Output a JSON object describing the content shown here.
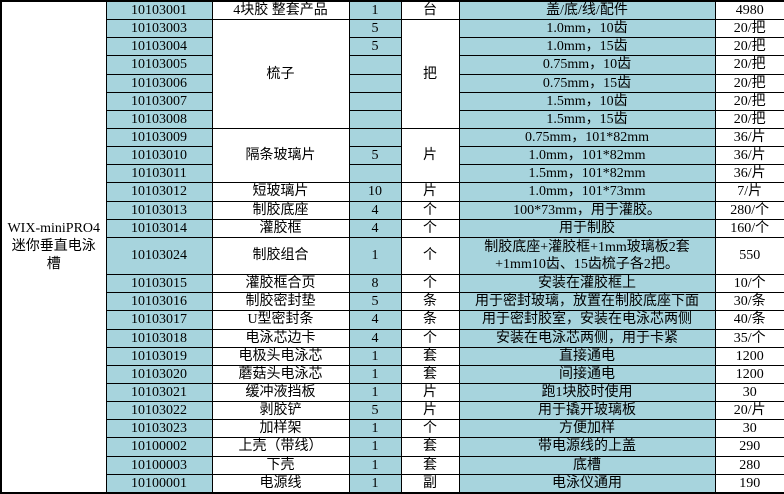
{
  "colors": {
    "cell_cyan": "#A7D4DD",
    "cell_white": "#FFFFFF",
    "border_black": "#000000"
  },
  "table": {
    "product_label_lines": [
      "WIX-miniPRO4",
      "迷你垂直电泳",
      "槽"
    ],
    "rows": [
      {
        "code": "10103001",
        "name": "4块胶 整套产品",
        "name_rowspan": 1,
        "qty": "1",
        "unit": "台",
        "unit_rowspan": 1,
        "desc": "盖/底/线/配件",
        "price": "4980"
      },
      {
        "code": "10103003",
        "name": "梳子",
        "name_rowspan": 6,
        "qty": "5",
        "unit": "把",
        "unit_rowspan": 6,
        "desc": "1.0mm，10齿",
        "price": "20/把"
      },
      {
        "code": "10103004",
        "qty": "5",
        "desc": "1.0mm，15齿",
        "price": "20/把"
      },
      {
        "code": "10103005",
        "qty": "",
        "desc": "0.75mm，10齿",
        "price": "20/把"
      },
      {
        "code": "10103006",
        "qty": "",
        "desc": "0.75mm，15齿",
        "price": "20/把"
      },
      {
        "code": "10103007",
        "qty": "",
        "desc": "1.5mm，10齿",
        "price": "20/把"
      },
      {
        "code": "10103008",
        "qty": "",
        "desc": "1.5mm，15齿",
        "price": "20/把"
      },
      {
        "code": "10103009",
        "name": "隔条玻璃片",
        "name_rowspan": 3,
        "qty": "",
        "unit": "片",
        "unit_rowspan": 3,
        "desc": "0.75mm，101*82mm",
        "price": "36/片"
      },
      {
        "code": "10103010",
        "qty": "5",
        "desc": "1.0mm，101*82mm",
        "price": "36/片"
      },
      {
        "code": "10103011",
        "qty": "",
        "desc": "1.5mm，101*82mm",
        "price": "36/片"
      },
      {
        "code": "10103012",
        "name": "短玻璃片",
        "name_rowspan": 1,
        "qty": "10",
        "unit": "片",
        "unit_rowspan": 1,
        "desc": "1.0mm，101*73mm",
        "price": "7/片"
      },
      {
        "code": "10103013",
        "name": "制胶底座",
        "name_rowspan": 1,
        "qty": "4",
        "unit": "个",
        "unit_rowspan": 1,
        "desc": "100*73mm，用于灌胶。",
        "price": "280/个"
      },
      {
        "code": "10103014",
        "name": "灌胶框",
        "name_rowspan": 1,
        "qty": "4",
        "unit": "个",
        "unit_rowspan": 1,
        "desc": "用于制胶",
        "price": "160/个"
      },
      {
        "code": "10103024",
        "name": "制胶组合",
        "name_rowspan": 1,
        "qty": "1",
        "unit": "个",
        "unit_rowspan": 1,
        "desc": [
          "制胶底座+灌胶框+1mm玻璃板2套",
          "+1mm10齿、15齿梳子各2把。"
        ],
        "price": "550",
        "tall": true
      },
      {
        "code": "10103015",
        "name": "灌胶框合页",
        "name_rowspan": 1,
        "qty": "8",
        "unit": "个",
        "unit_rowspan": 1,
        "desc": "安装在灌胶框上",
        "price": "10/个"
      },
      {
        "code": "10103016",
        "name": "制胶密封垫",
        "name_rowspan": 1,
        "qty": "5",
        "unit": "条",
        "unit_rowspan": 1,
        "desc": "用于密封玻璃，放置在制胶底座下面",
        "price": "30/条"
      },
      {
        "code": "10103017",
        "name": "U型密封条",
        "name_rowspan": 1,
        "qty": "4",
        "unit": "条",
        "unit_rowspan": 1,
        "desc": "用于密封胶室，安装在电泳芯两侧",
        "price": "40/条"
      },
      {
        "code": "10103018",
        "name": "电泳芯边卡",
        "name_rowspan": 1,
        "qty": "4",
        "unit": "个",
        "unit_rowspan": 1,
        "desc": "安装在电泳芯两侧，用于卡紧",
        "price": "35/个"
      },
      {
        "code": "10103019",
        "name": "电极头电泳芯",
        "name_rowspan": 1,
        "qty": "1",
        "unit": "套",
        "unit_rowspan": 1,
        "desc": "直接通电",
        "price": "1200"
      },
      {
        "code": "10103020",
        "name": "蘑菇头电泳芯",
        "name_rowspan": 1,
        "qty": "1",
        "unit": "套",
        "unit_rowspan": 1,
        "desc": "间接通电",
        "price": "1200"
      },
      {
        "code": "10103021",
        "name": "缓冲液挡板",
        "name_rowspan": 1,
        "qty": "1",
        "unit": "片",
        "unit_rowspan": 1,
        "desc": "跑1块胶时使用",
        "price": "30"
      },
      {
        "code": "10103022",
        "name": "剥胶铲",
        "name_rowspan": 1,
        "qty": "5",
        "unit": "片",
        "unit_rowspan": 1,
        "desc": "用于撬开玻璃板",
        "price": "20/片"
      },
      {
        "code": "10103023",
        "name": "加样架",
        "name_rowspan": 1,
        "qty": "1",
        "unit": "个",
        "unit_rowspan": 1,
        "desc": "方便加样",
        "price": "30"
      },
      {
        "code": "10100002",
        "name": "上壳（带线）",
        "name_rowspan": 1,
        "qty": "1",
        "unit": "套",
        "unit_rowspan": 1,
        "desc": "带电源线的上盖",
        "price": "290"
      },
      {
        "code": "10100003",
        "name": "下壳",
        "name_rowspan": 1,
        "qty": "1",
        "unit": "套",
        "unit_rowspan": 1,
        "desc": "底槽",
        "price": "280"
      },
      {
        "code": "10100001",
        "name": "电源线",
        "name_rowspan": 1,
        "qty": "1",
        "unit": "副",
        "unit_rowspan": 1,
        "desc": "电泳仪通用",
        "price": "190"
      }
    ]
  }
}
